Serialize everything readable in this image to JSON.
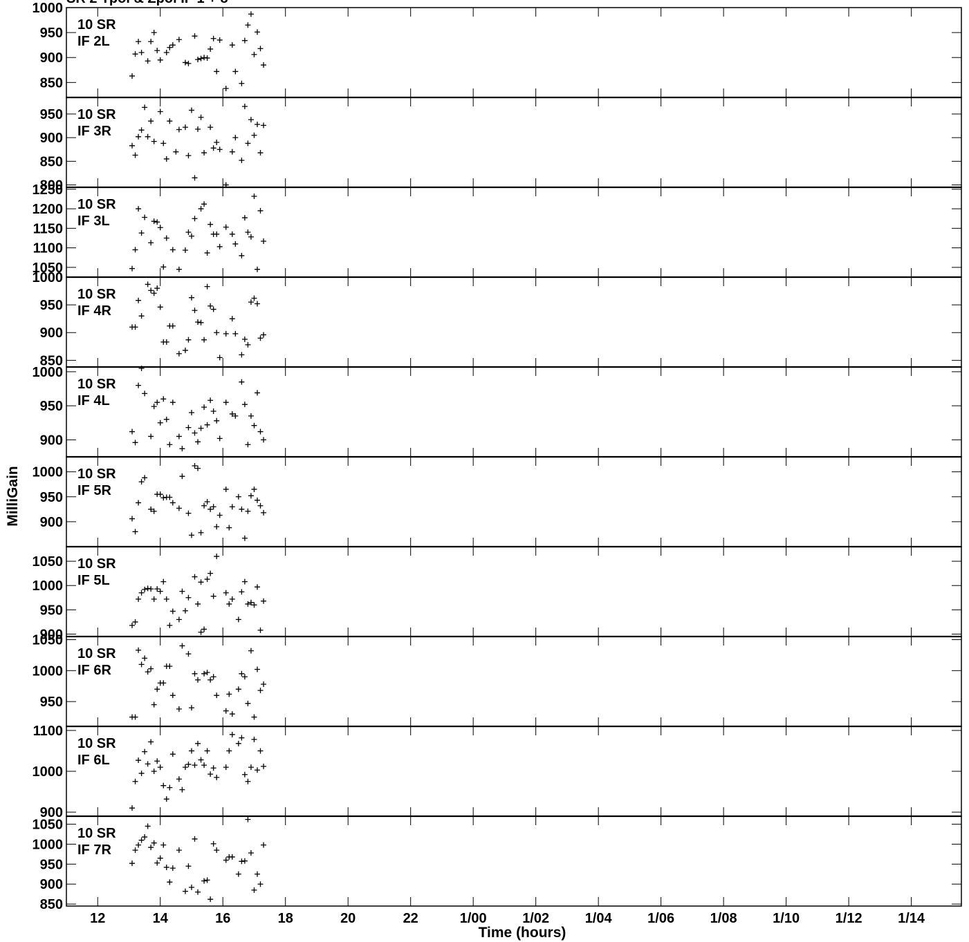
{
  "chart_data": {
    "type": "scatter",
    "title": "SR 2 Ypol & Zpol IF 1 + 8",
    "xlabel": "Time (hours)",
    "ylabel": "MilliGain",
    "marker": "+",
    "xlim": [
      11.0,
      39.6
    ],
    "x_ticks": [
      {
        "value": 12,
        "label": "12"
      },
      {
        "value": 14,
        "label": "14"
      },
      {
        "value": 16,
        "label": "16"
      },
      {
        "value": 18,
        "label": "18"
      },
      {
        "value": 20,
        "label": "20"
      },
      {
        "value": 22,
        "label": "22"
      },
      {
        "value": 24,
        "label": "1/00"
      },
      {
        "value": 26,
        "label": "1/02"
      },
      {
        "value": 28,
        "label": "1/04"
      },
      {
        "value": 30,
        "label": "1/06"
      },
      {
        "value": 32,
        "label": "1/08"
      },
      {
        "value": 34,
        "label": "1/10"
      },
      {
        "value": 36,
        "label": "1/12"
      },
      {
        "value": 38,
        "label": "1/14"
      }
    ],
    "panels": [
      {
        "antenna": "10 SR",
        "if": "IF 2L",
        "ylim": [
          820,
          1000
        ],
        "yticks": [
          850,
          900,
          950,
          1000
        ],
        "times": [
          13.1,
          13.2,
          13.3,
          13.4,
          13.6,
          13.7,
          13.8,
          13.9,
          14.0,
          14.2,
          14.3,
          14.4,
          14.6,
          14.8,
          14.9,
          15.1,
          15.2,
          15.3,
          15.4,
          15.5,
          15.6,
          15.7,
          15.8,
          15.9,
          16.1,
          16.3,
          16.4,
          16.6,
          16.7,
          16.8,
          16.9,
          17.0,
          17.1,
          17.2,
          17.3
        ],
        "values": [
          863,
          907,
          932,
          910,
          893,
          932,
          950,
          914,
          895,
          910,
          920,
          925,
          936,
          890,
          888,
          943,
          896,
          898,
          900,
          899,
          917,
          938,
          872,
          935,
          838,
          925,
          872,
          848,
          934,
          965,
          987,
          906,
          951,
          918,
          885
        ]
      },
      {
        "antenna": "10 SR",
        "if": "IF 3R",
        "ylim": [
          795,
          985
        ],
        "yticks": [
          800,
          850,
          900,
          950
        ],
        "times": [
          13.1,
          13.2,
          13.3,
          13.4,
          13.5,
          13.6,
          13.7,
          13.8,
          14.0,
          14.1,
          14.2,
          14.3,
          14.5,
          14.6,
          14.8,
          14.9,
          15.0,
          15.1,
          15.2,
          15.3,
          15.4,
          15.6,
          15.7,
          15.8,
          15.9,
          16.1,
          16.3,
          16.4,
          16.6,
          16.7,
          16.8,
          16.9,
          17.0,
          17.1,
          17.2,
          17.3
        ],
        "values": [
          883,
          863,
          902,
          916,
          964,
          902,
          935,
          892,
          955,
          888,
          855,
          935,
          870,
          917,
          922,
          862,
          958,
          815,
          918,
          943,
          868,
          922,
          878,
          890,
          875,
          800,
          870,
          900,
          852,
          966,
          888,
          938,
          905,
          928,
          868,
          926
        ]
      },
      {
        "antenna": "10 SR",
        "if": "IF 3L",
        "ylim": [
          1025,
          1255
        ],
        "yticks": [
          1050,
          1100,
          1150,
          1200,
          1250
        ],
        "times": [
          13.1,
          13.2,
          13.3,
          13.4,
          13.5,
          13.7,
          13.8,
          13.9,
          14.0,
          14.1,
          14.2,
          14.4,
          14.6,
          14.8,
          14.9,
          15.0,
          15.1,
          15.3,
          15.4,
          15.5,
          15.6,
          15.7,
          15.8,
          15.9,
          16.1,
          16.3,
          16.4,
          16.6,
          16.7,
          16.8,
          16.9,
          17.0,
          17.1,
          17.2,
          17.3
        ],
        "values": [
          1047,
          1095,
          1200,
          1138,
          1178,
          1113,
          1168,
          1166,
          1152,
          1051,
          1125,
          1095,
          1045,
          1094,
          1140,
          1130,
          1175,
          1200,
          1212,
          1087,
          1160,
          1135,
          1135,
          1103,
          1153,
          1135,
          1110,
          1080,
          1177,
          1140,
          1128,
          1232,
          1045,
          1195,
          1117
        ]
      },
      {
        "antenna": "10 SR",
        "if": "IF 4R",
        "ylim": [
          838,
          1000
        ],
        "yticks": [
          850,
          900,
          950,
          1000
        ],
        "times": [
          13.1,
          13.2,
          13.3,
          13.4,
          13.6,
          13.7,
          13.8,
          13.9,
          14.0,
          14.1,
          14.2,
          14.3,
          14.4,
          14.6,
          14.8,
          14.9,
          15.0,
          15.1,
          15.2,
          15.3,
          15.4,
          15.5,
          15.6,
          15.7,
          15.8,
          15.9,
          16.1,
          16.3,
          16.4,
          16.6,
          16.7,
          16.8,
          16.9,
          17.0,
          17.1,
          17.2,
          17.3
        ],
        "values": [
          910,
          910,
          958,
          930,
          987,
          976,
          971,
          980,
          946,
          883,
          883,
          912,
          912,
          862,
          868,
          887,
          963,
          940,
          919,
          918,
          887,
          983,
          948,
          942,
          900,
          855,
          898,
          925,
          898,
          860,
          888,
          878,
          955,
          962,
          952,
          890,
          896
        ]
      },
      {
        "antenna": "10 SR",
        "if": "IF 4L",
        "ylim": [
          875,
          1007
        ],
        "yticks": [
          900,
          950,
          1000
        ],
        "times": [
          13.1,
          13.2,
          13.3,
          13.4,
          13.5,
          13.7,
          13.8,
          13.9,
          14.0,
          14.1,
          14.2,
          14.3,
          14.4,
          14.6,
          14.7,
          14.9,
          15.0,
          15.1,
          15.2,
          15.3,
          15.4,
          15.5,
          15.6,
          15.7,
          15.8,
          15.9,
          16.1,
          16.3,
          16.4,
          16.6,
          16.7,
          16.8,
          16.9,
          17.0,
          17.1,
          17.2,
          17.3
        ],
        "values": [
          912,
          896,
          980,
          1005,
          968,
          905,
          949,
          955,
          925,
          960,
          930,
          893,
          955,
          905,
          887,
          918,
          940,
          910,
          897,
          917,
          948,
          922,
          958,
          942,
          928,
          902,
          955,
          938,
          935,
          985,
          952,
          893,
          935,
          921,
          969,
          912,
          900
        ]
      },
      {
        "antenna": "10 SR",
        "if": "IF 5R",
        "ylim": [
          850,
          1030
        ],
        "yticks": [
          900,
          950,
          1000
        ],
        "times": [
          13.1,
          13.2,
          13.3,
          13.4,
          13.5,
          13.7,
          13.8,
          13.9,
          14.0,
          14.1,
          14.2,
          14.3,
          14.4,
          14.6,
          14.7,
          14.9,
          15.0,
          15.1,
          15.2,
          15.3,
          15.4,
          15.5,
          15.6,
          15.7,
          15.8,
          15.9,
          16.1,
          16.2,
          16.3,
          16.5,
          16.6,
          16.7,
          16.8,
          16.9,
          17.0,
          17.1,
          17.2,
          17.3
        ],
        "values": [
          906,
          880,
          938,
          980,
          988,
          925,
          921,
          955,
          955,
          948,
          949,
          949,
          938,
          927,
          991,
          917,
          873,
          1012,
          1007,
          878,
          932,
          940,
          925,
          930,
          890,
          913,
          965,
          888,
          930,
          950,
          925,
          867,
          921,
          952,
          965,
          943,
          932,
          918
        ]
      },
      {
        "antenna": "10 SR",
        "if": "IF 5L",
        "ylim": [
          895,
          1080
        ],
        "yticks": [
          900,
          950,
          1000,
          1050
        ],
        "times": [
          13.1,
          13.2,
          13.3,
          13.4,
          13.5,
          13.6,
          13.7,
          13.8,
          13.9,
          14.0,
          14.1,
          14.2,
          14.3,
          14.4,
          14.6,
          14.7,
          14.8,
          14.9,
          15.1,
          15.2,
          15.3,
          15.4,
          15.5,
          15.6,
          15.7,
          15.8,
          16.1,
          16.2,
          16.3,
          16.5,
          16.6,
          16.7,
          16.8,
          16.9,
          17.0,
          17.1,
          17.2,
          17.3
        ],
        "values": [
          918,
          925,
          972,
          985,
          992,
          994,
          993,
          972,
          993,
          988,
          1008,
          972,
          918,
          947,
          930,
          988,
          948,
          975,
          1018,
          962,
          1007,
          910,
          1013,
          1025,
          978,
          1060,
          985,
          962,
          972,
          930,
          987,
          1008,
          962,
          965,
          960,
          997,
          908,
          968
        ]
      },
      {
        "antenna": "10 SR",
        "if": "IF 6R",
        "ylim": [
          910,
          1055
        ],
        "yticks": [
          950,
          1000,
          1050
        ],
        "times": [
          13.1,
          13.2,
          13.3,
          13.4,
          13.5,
          13.6,
          13.7,
          13.8,
          13.9,
          14.0,
          14.1,
          14.2,
          14.3,
          14.4,
          14.6,
          14.7,
          14.9,
          15.0,
          15.1,
          15.2,
          15.3,
          15.4,
          15.5,
          15.6,
          15.7,
          15.8,
          16.1,
          16.2,
          16.3,
          16.5,
          16.6,
          16.7,
          16.8,
          16.9,
          17.0,
          17.1,
          17.2,
          17.3
        ],
        "values": [
          925,
          925,
          1033,
          1010,
          1020,
          998,
          1003,
          945,
          970,
          980,
          980,
          1007,
          1007,
          960,
          938,
          1040,
          1027,
          940,
          995,
          985,
          1062,
          995,
          997,
          985,
          990,
          960,
          935,
          962,
          930,
          970,
          995,
          990,
          947,
          1032,
          925,
          1002,
          968,
          978
        ]
      },
      {
        "antenna": "10 SR",
        "if": "IF 6L",
        "ylim": [
          890,
          1110
        ],
        "yticks": [
          900,
          1000,
          1100
        ],
        "times": [
          13.1,
          13.2,
          13.3,
          13.4,
          13.5,
          13.6,
          13.7,
          13.8,
          13.9,
          14.0,
          14.1,
          14.2,
          14.3,
          14.4,
          14.6,
          14.7,
          14.8,
          14.9,
          15.0,
          15.1,
          15.2,
          15.3,
          15.4,
          15.5,
          15.6,
          15.7,
          15.8,
          16.1,
          16.2,
          16.3,
          16.5,
          16.6,
          16.7,
          16.8,
          16.9,
          17.0,
          17.1,
          17.2,
          17.3
        ],
        "values": [
          910,
          975,
          1027,
          995,
          1048,
          1018,
          1072,
          1000,
          1025,
          1010,
          965,
          932,
          960,
          1042,
          981,
          955,
          1010,
          1017,
          1050,
          1015,
          1068,
          1028,
          1015,
          1050,
          993,
          1008,
          985,
          1010,
          1050,
          1090,
          1068,
          1082,
          992,
          975,
          1010,
          1078,
          1003,
          1050,
          1012
        ]
      },
      {
        "antenna": "10 SR",
        "if": "IF 7R",
        "ylim": [
          845,
          1070
        ],
        "yticks": [
          850,
          900,
          950,
          1000,
          1050
        ],
        "times": [
          13.1,
          13.2,
          13.3,
          13.4,
          13.5,
          13.6,
          13.7,
          13.8,
          13.9,
          14.0,
          14.1,
          14.2,
          14.3,
          14.4,
          14.6,
          14.8,
          14.9,
          15.0,
          15.1,
          15.2,
          15.4,
          15.5,
          15.6,
          15.7,
          15.8,
          16.1,
          16.2,
          16.3,
          16.5,
          16.6,
          16.7,
          16.8,
          16.9,
          17.0,
          17.1,
          17.2,
          17.3
        ],
        "values": [
          952,
          985,
          998,
          1010,
          1018,
          1045,
          992,
          1003,
          953,
          965,
          998,
          942,
          905,
          940,
          985,
          882,
          945,
          892,
          1013,
          880,
          908,
          910,
          862,
          1001,
          985,
          960,
          968,
          968,
          925,
          957,
          958,
          1062,
          978,
          885,
          925,
          900,
          998
        ]
      }
    ]
  }
}
